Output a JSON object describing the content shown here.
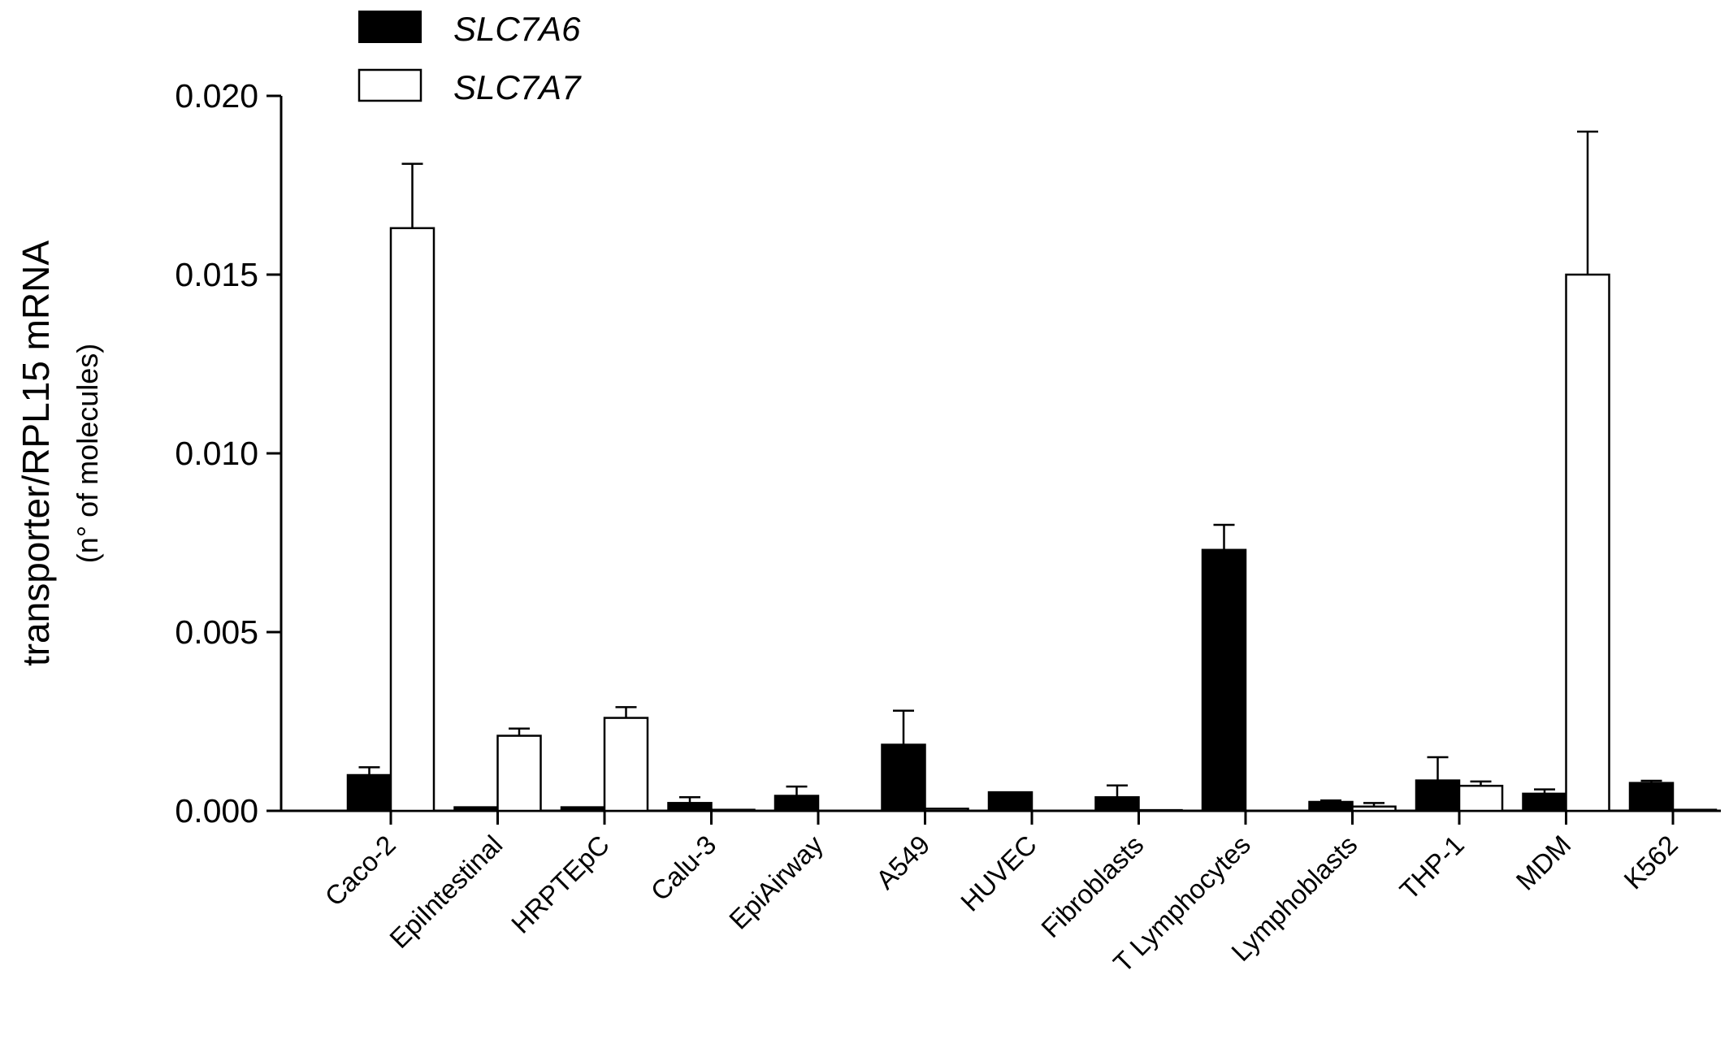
{
  "chart_data": {
    "type": "bar",
    "ylabel_line1": "transporter/RPL15 mRNA",
    "ylabel_line2": "(n° of molecules)",
    "ylim": [
      0,
      0.02
    ],
    "yticks": [
      "0.000",
      "0.005",
      "0.010",
      "0.015",
      "0.020"
    ],
    "ytick_values": [
      0,
      0.005,
      0.01,
      0.015,
      0.02
    ],
    "legend_position": "top-left",
    "grid": false,
    "categories": [
      "Caco-2",
      "EpiIntestinal",
      "HRPTEpC",
      "Calu-3",
      "EpiAirway",
      "A549",
      "HUVEC",
      "Fibroblasts",
      "T Lymphocytes",
      "Lymphoblasts",
      "THP-1",
      "MDM",
      "K562"
    ],
    "series": [
      {
        "name": "SLC7A6",
        "color": "#000000",
        "values": [
          0.001,
          0.0001,
          0.0001,
          0.00022,
          0.00042,
          0.00185,
          0.00052,
          0.00038,
          0.0073,
          0.00025,
          0.00085,
          0.00048,
          0.00078
        ],
        "errors": [
          0.00022,
          2e-05,
          2e-05,
          0.00016,
          0.00026,
          0.00095,
          2e-05,
          0.00033,
          0.0007,
          4e-05,
          0.00065,
          0.00012,
          6e-05
        ]
      },
      {
        "name": "SLC7A7",
        "color": "#ffffff",
        "values": [
          0.0163,
          0.0021,
          0.0026,
          3e-05,
          0.0,
          6e-05,
          0.0,
          2e-05,
          0.0,
          0.00012,
          0.0007,
          0.015,
          3e-05
        ],
        "errors": [
          0.0018,
          0.0002,
          0.0003,
          1e-05,
          0.0,
          3e-05,
          0.0,
          1e-05,
          0.0,
          0.0001,
          0.00012,
          0.004,
          1e-05
        ]
      }
    ]
  }
}
